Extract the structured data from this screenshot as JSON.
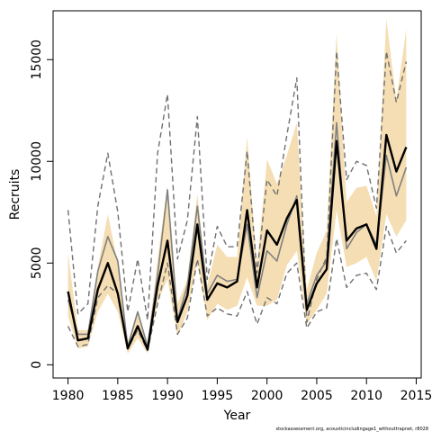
{
  "chart_data": {
    "type": "line",
    "xlabel": "Year",
    "ylabel": "Recruits",
    "footnote": "stockassessment.org, acousticincludingage1_withouttrapnet, r8028",
    "xlim": [
      1978.5,
      2015.5
    ],
    "ylim": [
      -650,
      17400
    ],
    "xticks": [
      1980,
      1985,
      1990,
      1995,
      2000,
      2005,
      2010,
      2015
    ],
    "xtick_labels": [
      "1980",
      "1985",
      "1990",
      "1995",
      "2000",
      "2005",
      "2010",
      "2015"
    ],
    "yticks": [
      0,
      5000,
      10000,
      15000
    ],
    "ytick_labels": [
      "0",
      "5000",
      "10000",
      "15000"
    ],
    "grid": false,
    "colors": {
      "band": "#f5deb3",
      "estimate": "#000000",
      "alt_estimate": "#808080",
      "alt_bounds": "#707070"
    },
    "x": [
      1980,
      1981,
      1982,
      1983,
      1984,
      1985,
      1986,
      1987,
      1988,
      1989,
      1990,
      1991,
      1992,
      1993,
      1994,
      1995,
      1996,
      1997,
      1998,
      1999,
      2000,
      2001,
      2002,
      2003,
      2004,
      2005,
      2006,
      2007,
      2008,
      2009,
      2010,
      2011,
      2012,
      2013,
      2014
    ],
    "series": [
      {
        "role": "band_upper",
        "values": [
          5500,
          1700,
          1700,
          4800,
          7400,
          5000,
          1100,
          2600,
          1000,
          5200,
          8800,
          3000,
          4200,
          8400,
          3900,
          5900,
          5300,
          5300,
          11200,
          4900,
          10100,
          8900,
          10300,
          11900,
          3700,
          5500,
          6600,
          16300,
          8000,
          8700,
          8800,
          7300,
          17000,
          13000,
          16500
        ]
      },
      {
        "role": "band_lower",
        "values": [
          2400,
          800,
          900,
          2600,
          3500,
          2600,
          550,
          1300,
          550,
          3100,
          4200,
          1400,
          2600,
          5100,
          2200,
          3000,
          2700,
          2900,
          4300,
          2900,
          2900,
          3200,
          4900,
          5600,
          2000,
          2700,
          3500,
          7600,
          4800,
          5000,
          5300,
          4100,
          7400,
          6300,
          7100
        ]
      },
      {
        "role": "estimate",
        "values": [
          3600,
          1200,
          1300,
          3700,
          5000,
          3500,
          800,
          1900,
          750,
          3900,
          6100,
          2100,
          3400,
          6900,
          3200,
          4000,
          3800,
          4100,
          7600,
          3800,
          6600,
          5900,
          7200,
          8100,
          2700,
          4000,
          4700,
          11000,
          6100,
          6700,
          6900,
          5700,
          11300,
          9500,
          10700
        ]
      },
      {
        "role": "alt_estimate",
        "values": [
          3200,
          1500,
          1500,
          4600,
          6300,
          5100,
          900,
          2600,
          900,
          4400,
          8600,
          2200,
          3900,
          7800,
          3500,
          4400,
          4100,
          4200,
          6900,
          3300,
          5600,
          5100,
          6900,
          8300,
          3000,
          4400,
          5100,
          11900,
          5700,
          6500,
          6900,
          5900,
          10300,
          8300,
          9700
        ]
      },
      {
        "role": "alt_upper",
        "values": [
          7600,
          2500,
          3000,
          7800,
          10400,
          7500,
          2600,
          5200,
          2200,
          10400,
          13300,
          5200,
          7100,
          12200,
          4200,
          6800,
          5800,
          5800,
          10500,
          4500,
          9100,
          8300,
          11300,
          14100,
          2100,
          4200,
          5300,
          15400,
          9100,
          10000,
          9800,
          7700,
          15400,
          12900,
          14900
        ]
      },
      {
        "role": "alt_lower",
        "values": [
          1900,
          900,
          1000,
          3300,
          3900,
          3500,
          800,
          1700,
          700,
          3000,
          5000,
          1500,
          2300,
          5200,
          2400,
          2800,
          2500,
          2400,
          3600,
          2000,
          3300,
          3000,
          4500,
          5000,
          1800,
          2600,
          2800,
          6200,
          3800,
          4400,
          4500,
          3700,
          6800,
          5500,
          6100
        ]
      }
    ]
  }
}
